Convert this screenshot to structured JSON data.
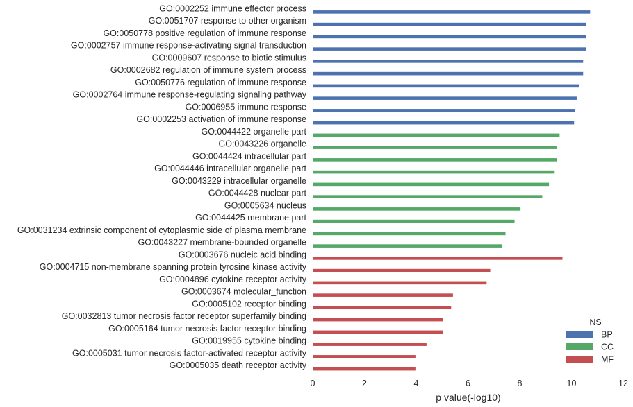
{
  "chart_data": {
    "type": "bar",
    "orientation": "horizontal",
    "xlabel": "p value(-log10)",
    "ylabel": "",
    "xlim": [
      0,
      12
    ],
    "xticks": [
      0,
      2,
      4,
      6,
      8,
      10,
      12
    ],
    "grid": false,
    "legend": {
      "title": "NS",
      "placement": "bottom-right",
      "entries": [
        {
          "label": "BP",
          "color": "#4c72b0"
        },
        {
          "label": "CC",
          "color": "#55a868"
        },
        {
          "label": "MF",
          "color": "#c44e52"
        }
      ]
    },
    "categories": [
      "GO:0002252 immune effector process",
      "GO:0051707 response to other organism",
      "GO:0050778 positive regulation of immune response",
      "GO:0002757 immune response-activating signal transduction",
      "GO:0009607 response to biotic stimulus",
      "GO:0002682 regulation of immune system process",
      "GO:0050776 regulation of immune response",
      "GO:0002764 immune response-regulating signaling pathway",
      "GO:0006955 immune response",
      "GO:0002253 activation of immune response",
      "GO:0044422 organelle part",
      "GO:0043226 organelle",
      "GO:0044424 intracellular part",
      "GO:0044446 intracellular organelle part",
      "GO:0043229 intracellular organelle",
      "GO:0044428 nuclear part",
      "GO:0005634 nucleus",
      "GO:0044425 membrane part",
      "GO:0031234 extrinsic component of cytoplasmic side of plasma membrane",
      "GO:0043227 membrane-bounded organelle",
      "GO:0003676 nucleic acid binding",
      "GO:0004715 non-membrane spanning protein tyrosine kinase activity",
      "GO:0004896 cytokine receptor activity",
      "GO:0003674 molecular_function",
      "GO:0005102 receptor binding",
      "GO:0032813 tumor necrosis factor receptor superfamily binding",
      "GO:0005164 tumor necrosis factor receptor binding",
      "GO:0019955 cytokine binding",
      "GO:0005031 tumor necrosis factor-activated receptor activity",
      "GO:0005035 death receptor activity"
    ],
    "series": [
      {
        "name": "BP",
        "color": "#4c72b0",
        "values": [
          10.72,
          10.56,
          10.56,
          10.56,
          10.45,
          10.45,
          10.3,
          10.2,
          10.13,
          10.1,
          null,
          null,
          null,
          null,
          null,
          null,
          null,
          null,
          null,
          null,
          null,
          null,
          null,
          null,
          null,
          null,
          null,
          null,
          null,
          null
        ]
      },
      {
        "name": "CC",
        "color": "#55a868",
        "values": [
          null,
          null,
          null,
          null,
          null,
          null,
          null,
          null,
          null,
          null,
          9.54,
          9.45,
          9.43,
          9.35,
          9.13,
          8.87,
          8.03,
          7.8,
          7.45,
          7.33,
          null,
          null,
          null,
          null,
          null,
          null,
          null,
          null,
          null,
          null
        ]
      },
      {
        "name": "MF",
        "color": "#c44e52",
        "values": [
          null,
          null,
          null,
          null,
          null,
          null,
          null,
          null,
          null,
          null,
          null,
          null,
          null,
          null,
          null,
          null,
          null,
          null,
          null,
          null,
          9.65,
          6.86,
          6.72,
          5.42,
          5.35,
          5.03,
          5.03,
          4.4,
          3.97,
          3.97
        ]
      }
    ]
  }
}
